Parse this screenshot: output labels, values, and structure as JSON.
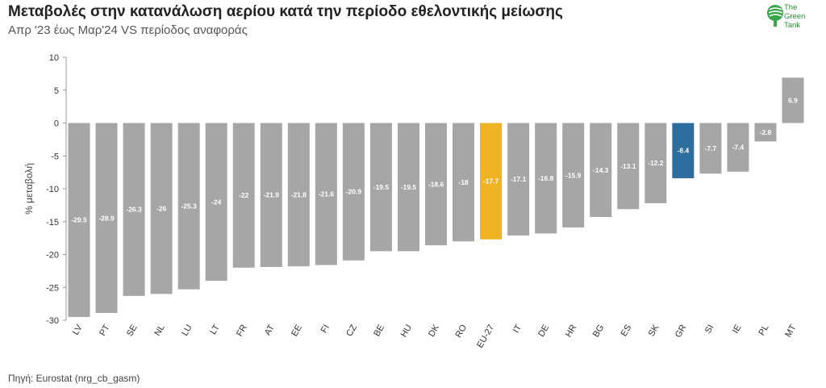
{
  "title": "Μεταβολές στην κατανάλωση αερίου κατά την περίοδο εθελοντικής μείωσης",
  "subtitle": "Απρ '23 έως Μαρ'24 VS περίοδος αναφοράς",
  "source": "Πηγή: Eurostat (nrg_cb_gasm)",
  "logo": {
    "line1": "The",
    "line2": "Green",
    "line3": "Tank",
    "icon": "green-tank-logo-icon",
    "color": "#2e8b3a"
  },
  "colors": {
    "default": "#a6a6a6",
    "eu": "#f0b323",
    "gr": "#2e6e9e"
  },
  "chart_data": {
    "type": "bar",
    "ylabel": "% μεταβολή",
    "ylim": [
      -30,
      10
    ],
    "yticks": [
      10,
      5,
      0,
      -5,
      -10,
      -15,
      -20,
      -25,
      -30
    ],
    "grid": false,
    "categories": [
      "LV",
      "PT",
      "SE",
      "NL",
      "LU",
      "LT",
      "FR",
      "AT",
      "EE",
      "FI",
      "CZ",
      "BE",
      "HU",
      "DK",
      "RO",
      "EU-27",
      "IT",
      "DE",
      "HR",
      "BG",
      "ES",
      "SK",
      "GR",
      "SI",
      "IE",
      "PL",
      "MT"
    ],
    "values": [
      -29.5,
      -28.9,
      -26.3,
      -26,
      -25.3,
      -24,
      -22,
      -21.9,
      -21.8,
      -21.6,
      -20.9,
      -19.5,
      -19.5,
      -18.6,
      -18,
      -17.7,
      -17.1,
      -16.8,
      -15.9,
      -14.3,
      -13.1,
      -12.2,
      -8.4,
      -7.7,
      -7.4,
      -2.8,
      6.9
    ],
    "labels": [
      "-29.5",
      "-28.9",
      "-26.3",
      "-26",
      "-25.3",
      "-24",
      "-22",
      "-21.9",
      "-21.8",
      "-21.6",
      "-20.9",
      "-19.5",
      "-19.5",
      "-18.6",
      "-18",
      "-17.7",
      "-17.1",
      "-16.8",
      "-15.9",
      "-14.3",
      "-13.1",
      "-12.2",
      "-8.4",
      "-7.7",
      "-7.4",
      "-2.8",
      "6.9"
    ],
    "highlight": {
      "EU-27": "eu",
      "GR": "gr"
    }
  }
}
